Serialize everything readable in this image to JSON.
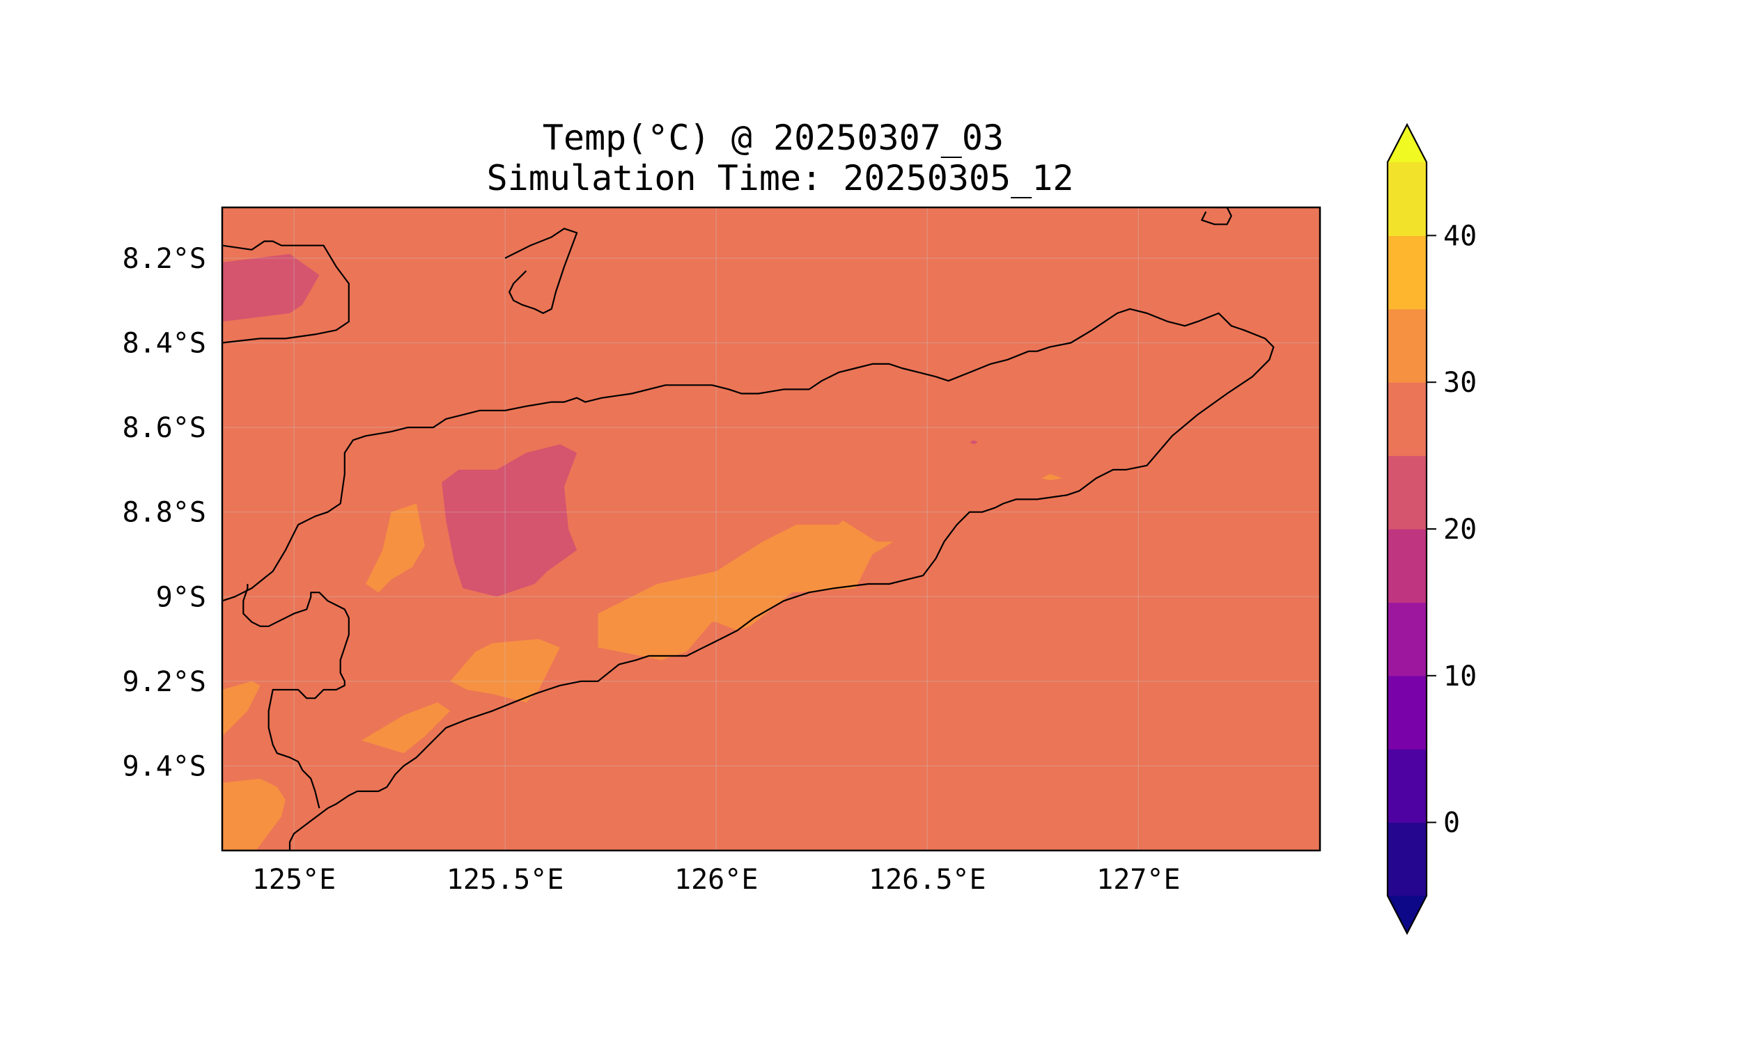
{
  "title": {
    "line1": "Temp(°C) @ 20250307_03",
    "line2": "Simulation Time: 20250305_12"
  },
  "map": {
    "lon_range": [
      124.83,
      127.43
    ],
    "lat_range": [
      -9.6,
      -8.08
    ],
    "lon_ticks": [
      {
        "value": 125.0,
        "label": "125°E"
      },
      {
        "value": 125.5,
        "label": "125.5°E"
      },
      {
        "value": 126.0,
        "label": "126°E"
      },
      {
        "value": 126.5,
        "label": "126.5°E"
      },
      {
        "value": 127.0,
        "label": "127°E"
      }
    ],
    "lat_ticks": [
      {
        "value": -8.2,
        "label": "8.2°S"
      },
      {
        "value": -8.4,
        "label": "8.4°S"
      },
      {
        "value": -8.6,
        "label": "8.6°S"
      },
      {
        "value": -8.8,
        "label": "8.8°S"
      },
      {
        "value": -9.0,
        "label": "9°S"
      },
      {
        "value": -9.2,
        "label": "9.2°S"
      },
      {
        "value": -9.4,
        "label": "9.4°S"
      }
    ],
    "background_level_color": "#eb7557",
    "fields": [
      {
        "level": "20-25",
        "color": "#d5546e",
        "points": [
          [
            124.83,
            -8.21
          ],
          [
            124.99,
            -8.19
          ],
          [
            125.06,
            -8.24
          ],
          [
            125.02,
            -8.31
          ],
          [
            124.99,
            -8.33
          ],
          [
            124.83,
            -8.35
          ]
        ]
      },
      {
        "level": "20-25",
        "color": "#d5546e",
        "points": [
          [
            125.35,
            -8.73
          ],
          [
            125.39,
            -8.7
          ],
          [
            125.48,
            -8.7
          ],
          [
            125.55,
            -8.66
          ],
          [
            125.63,
            -8.64
          ],
          [
            125.67,
            -8.66
          ],
          [
            125.64,
            -8.74
          ],
          [
            125.65,
            -8.84
          ],
          [
            125.67,
            -8.89
          ],
          [
            125.6,
            -8.94
          ],
          [
            125.57,
            -8.97
          ],
          [
            125.48,
            -9.0
          ],
          [
            125.4,
            -8.98
          ],
          [
            125.38,
            -8.92
          ],
          [
            125.36,
            -8.82
          ]
        ]
      },
      {
        "level": "20-25",
        "color": "#d5546e",
        "points": [
          [
            126.61,
            -8.64
          ],
          [
            126.62,
            -8.635
          ],
          [
            126.61,
            -8.63
          ],
          [
            126.6,
            -8.635
          ]
        ]
      },
      {
        "level": "30-35",
        "color": "#f69141",
        "points": [
          [
            125.23,
            -8.8
          ],
          [
            125.29,
            -8.78
          ],
          [
            125.31,
            -8.88
          ],
          [
            125.28,
            -8.93
          ],
          [
            125.23,
            -8.96
          ],
          [
            125.2,
            -8.99
          ],
          [
            125.17,
            -8.97
          ],
          [
            125.21,
            -8.89
          ]
        ]
      },
      {
        "level": "30-35",
        "color": "#f69141",
        "points": [
          [
            125.72,
            -9.04
          ],
          [
            125.86,
            -8.97
          ],
          [
            126.0,
            -8.94
          ],
          [
            126.11,
            -8.87
          ],
          [
            126.19,
            -8.83
          ],
          [
            126.29,
            -8.83
          ],
          [
            126.3,
            -8.82
          ],
          [
            126.38,
            -8.87
          ],
          [
            126.42,
            -8.87
          ],
          [
            126.37,
            -8.9
          ],
          [
            126.33,
            -8.98
          ],
          [
            126.18,
            -8.99
          ],
          [
            126.08,
            -9.07
          ],
          [
            126.05,
            -9.08
          ],
          [
            126.0,
            -9.06
          ],
          [
            125.99,
            -9.06
          ],
          [
            125.93,
            -9.13
          ],
          [
            125.87,
            -9.15
          ],
          [
            125.72,
            -9.12
          ]
        ]
      },
      {
        "level": "30-35",
        "color": "#f69141",
        "points": [
          [
            125.43,
            -9.13
          ],
          [
            125.47,
            -9.11
          ],
          [
            125.58,
            -9.1
          ],
          [
            125.63,
            -9.12
          ],
          [
            125.58,
            -9.22
          ],
          [
            125.55,
            -9.25
          ],
          [
            125.47,
            -9.23
          ],
          [
            125.41,
            -9.22
          ],
          [
            125.37,
            -9.2
          ]
        ]
      },
      {
        "level": "30-35",
        "color": "#f69141",
        "points": [
          [
            124.83,
            -9.22
          ],
          [
            124.9,
            -9.2
          ],
          [
            124.92,
            -9.21
          ],
          [
            124.89,
            -9.27
          ],
          [
            124.83,
            -9.33
          ]
        ]
      },
      {
        "level": "30-35",
        "color": "#f69141",
        "points": [
          [
            125.26,
            -9.28
          ],
          [
            125.34,
            -9.25
          ],
          [
            125.37,
            -9.27
          ],
          [
            125.31,
            -9.33
          ],
          [
            125.26,
            -9.37
          ],
          [
            125.16,
            -9.34
          ]
        ]
      },
      {
        "level": "30-35",
        "color": "#f69141",
        "points": [
          [
            124.83,
            -9.44
          ],
          [
            124.92,
            -9.43
          ],
          [
            124.96,
            -9.45
          ],
          [
            124.98,
            -9.48
          ],
          [
            124.97,
            -9.52
          ],
          [
            124.94,
            -9.56
          ],
          [
            124.91,
            -9.6
          ],
          [
            124.83,
            -9.6
          ]
        ]
      },
      {
        "level": "30-35",
        "color": "#f69141",
        "points": [
          [
            126.77,
            -8.72
          ],
          [
            126.79,
            -8.71
          ],
          [
            126.82,
            -8.72
          ],
          [
            126.79,
            -8.725
          ]
        ]
      }
    ],
    "coastlines": [
      [
        [
          124.83,
          -8.17
        ],
        [
          124.9,
          -8.18
        ],
        [
          124.93,
          -8.16
        ],
        [
          124.95,
          -8.16
        ],
        [
          124.97,
          -8.17
        ],
        [
          125.02,
          -8.17
        ],
        [
          125.07,
          -8.17
        ],
        [
          125.1,
          -8.22
        ],
        [
          125.13,
          -8.26
        ],
        [
          125.13,
          -8.29
        ],
        [
          125.13,
          -8.35
        ],
        [
          125.1,
          -8.37
        ],
        [
          125.05,
          -8.38
        ],
        [
          124.98,
          -8.39
        ],
        [
          124.92,
          -8.39
        ],
        [
          124.83,
          -8.4
        ]
      ],
      [
        [
          125.5,
          -8.2
        ],
        [
          125.56,
          -8.17
        ],
        [
          125.61,
          -8.15
        ],
        [
          125.64,
          -8.13
        ],
        [
          125.67,
          -8.14
        ],
        [
          125.64,
          -8.22
        ],
        [
          125.62,
          -8.28
        ],
        [
          125.61,
          -8.32
        ],
        [
          125.59,
          -8.33
        ],
        [
          125.57,
          -8.32
        ],
        [
          125.54,
          -8.31
        ],
        [
          125.52,
          -8.3
        ],
        [
          125.51,
          -8.28
        ],
        [
          125.52,
          -8.26
        ],
        [
          125.55,
          -8.23
        ]
      ],
      [
        [
          127.18,
          -8.08
        ],
        [
          127.21,
          -8.08
        ],
        [
          127.22,
          -8.1
        ],
        [
          127.21,
          -8.12
        ],
        [
          127.18,
          -8.12
        ],
        [
          127.15,
          -8.11
        ],
        [
          127.16,
          -8.09
        ]
      ],
      [
        [
          124.83,
          -9.01
        ],
        [
          124.86,
          -9.0
        ],
        [
          124.9,
          -8.98
        ],
        [
          124.95,
          -8.94
        ],
        [
          124.98,
          -8.89
        ],
        [
          125.01,
          -8.83
        ],
        [
          125.05,
          -8.81
        ],
        [
          125.08,
          -8.8
        ],
        [
          125.11,
          -8.78
        ],
        [
          125.12,
          -8.71
        ],
        [
          125.12,
          -8.66
        ],
        [
          125.14,
          -8.63
        ],
        [
          125.17,
          -8.62
        ],
        [
          125.23,
          -8.61
        ],
        [
          125.27,
          -8.6
        ],
        [
          125.3,
          -8.6
        ],
        [
          125.33,
          -8.6
        ],
        [
          125.36,
          -8.58
        ],
        [
          125.4,
          -8.57
        ],
        [
          125.44,
          -8.56
        ],
        [
          125.5,
          -8.56
        ],
        [
          125.55,
          -8.55
        ],
        [
          125.61,
          -8.54
        ],
        [
          125.64,
          -8.54
        ],
        [
          125.67,
          -8.53
        ],
        [
          125.69,
          -8.54
        ],
        [
          125.73,
          -8.53
        ],
        [
          125.8,
          -8.52
        ],
        [
          125.88,
          -8.5
        ],
        [
          125.92,
          -8.5
        ],
        [
          125.99,
          -8.5
        ],
        [
          126.03,
          -8.51
        ],
        [
          126.06,
          -8.52
        ],
        [
          126.1,
          -8.52
        ],
        [
          126.16,
          -8.51
        ],
        [
          126.22,
          -8.51
        ],
        [
          126.25,
          -8.49
        ],
        [
          126.29,
          -8.47
        ],
        [
          126.33,
          -8.46
        ],
        [
          126.37,
          -8.45
        ],
        [
          126.41,
          -8.45
        ],
        [
          126.44,
          -8.46
        ],
        [
          126.48,
          -8.47
        ],
        [
          126.52,
          -8.48
        ],
        [
          126.55,
          -8.49
        ],
        [
          126.6,
          -8.47
        ],
        [
          126.65,
          -8.45
        ],
        [
          126.69,
          -8.44
        ],
        [
          126.74,
          -8.42
        ],
        [
          126.76,
          -8.42
        ],
        [
          126.79,
          -8.41
        ],
        [
          126.84,
          -8.4
        ],
        [
          126.89,
          -8.37
        ],
        [
          126.95,
          -8.33
        ],
        [
          126.98,
          -8.32
        ],
        [
          127.02,
          -8.33
        ],
        [
          127.07,
          -8.35
        ],
        [
          127.11,
          -8.36
        ],
        [
          127.14,
          -8.35
        ],
        [
          127.19,
          -8.33
        ],
        [
          127.22,
          -8.36
        ],
        [
          127.25,
          -8.37
        ],
        [
          127.3,
          -8.39
        ],
        [
          127.32,
          -8.41
        ],
        [
          127.31,
          -8.44
        ],
        [
          127.27,
          -8.48
        ],
        [
          127.21,
          -8.52
        ],
        [
          127.14,
          -8.57
        ],
        [
          127.08,
          -8.62
        ],
        [
          127.02,
          -8.69
        ],
        [
          126.97,
          -8.7
        ],
        [
          126.94,
          -8.7
        ],
        [
          126.9,
          -8.72
        ],
        [
          126.86,
          -8.75
        ],
        [
          126.83,
          -8.76
        ],
        [
          126.76,
          -8.77
        ],
        [
          126.71,
          -8.77
        ],
        [
          126.68,
          -8.78
        ],
        [
          126.66,
          -8.79
        ],
        [
          126.63,
          -8.8
        ],
        [
          126.6,
          -8.8
        ],
        [
          126.57,
          -8.83
        ],
        [
          126.54,
          -8.87
        ],
        [
          126.52,
          -8.91
        ],
        [
          126.49,
          -8.95
        ],
        [
          126.45,
          -8.96
        ],
        [
          126.41,
          -8.97
        ],
        [
          126.36,
          -8.97
        ],
        [
          126.28,
          -8.98
        ],
        [
          126.22,
          -8.99
        ],
        [
          126.16,
          -9.01
        ],
        [
          126.09,
          -9.05
        ],
        [
          126.05,
          -9.08
        ],
        [
          126.01,
          -9.1
        ],
        [
          125.97,
          -9.12
        ],
        [
          125.93,
          -9.14
        ],
        [
          125.88,
          -9.14
        ],
        [
          125.84,
          -9.14
        ],
        [
          125.81,
          -9.15
        ],
        [
          125.77,
          -9.16
        ],
        [
          125.72,
          -9.2
        ],
        [
          125.68,
          -9.2
        ],
        [
          125.63,
          -9.21
        ],
        [
          125.6,
          -9.22
        ],
        [
          125.57,
          -9.23
        ],
        [
          125.52,
          -9.25
        ],
        [
          125.47,
          -9.27
        ],
        [
          125.41,
          -9.29
        ],
        [
          125.36,
          -9.31
        ],
        [
          125.32,
          -9.35
        ],
        [
          125.29,
          -9.38
        ],
        [
          125.26,
          -9.4
        ],
        [
          125.24,
          -9.42
        ],
        [
          125.22,
          -9.45
        ],
        [
          125.2,
          -9.46
        ],
        [
          125.15,
          -9.46
        ],
        [
          125.13,
          -9.47
        ],
        [
          125.1,
          -9.49
        ],
        [
          125.08,
          -9.5
        ],
        [
          125.04,
          -9.53
        ],
        [
          125.0,
          -9.56
        ],
        [
          124.99,
          -9.58
        ],
        [
          124.99,
          -9.6
        ]
      ],
      [
        [
          125.06,
          -9.5
        ],
        [
          125.05,
          -9.46
        ],
        [
          125.04,
          -9.43
        ],
        [
          125.02,
          -9.41
        ],
        [
          125.01,
          -9.39
        ],
        [
          124.99,
          -9.38
        ],
        [
          124.96,
          -9.37
        ],
        [
          124.95,
          -9.35
        ],
        [
          124.94,
          -9.31
        ],
        [
          124.94,
          -9.27
        ],
        [
          124.95,
          -9.22
        ],
        [
          124.98,
          -9.22
        ],
        [
          125.01,
          -9.22
        ],
        [
          125.03,
          -9.24
        ],
        [
          125.05,
          -9.24
        ],
        [
          125.07,
          -9.22
        ],
        [
          125.1,
          -9.22
        ],
        [
          125.12,
          -9.21
        ],
        [
          125.12,
          -9.2
        ],
        [
          125.11,
          -9.18
        ],
        [
          125.11,
          -9.15
        ],
        [
          125.12,
          -9.12
        ],
        [
          125.13,
          -9.09
        ],
        [
          125.13,
          -9.05
        ],
        [
          125.12,
          -9.03
        ],
        [
          125.1,
          -9.02
        ],
        [
          125.08,
          -9.01
        ],
        [
          125.06,
          -8.99
        ],
        [
          125.04,
          -8.99
        ],
        [
          125.04,
          -9.0
        ],
        [
          125.03,
          -9.03
        ],
        [
          125.0,
          -9.04
        ],
        [
          124.98,
          -9.05
        ],
        [
          124.96,
          -9.06
        ],
        [
          124.94,
          -9.07
        ],
        [
          124.92,
          -9.07
        ],
        [
          124.9,
          -9.06
        ],
        [
          124.88,
          -9.04
        ],
        [
          124.88,
          -9.01
        ],
        [
          124.89,
          -8.98
        ],
        [
          124.89,
          -8.97
        ]
      ]
    ],
    "colorbar": {
      "levels": [
        -5,
        0,
        5,
        10,
        15,
        20,
        25,
        30,
        35,
        40,
        45
      ],
      "colors": [
        "#24068f",
        "#4e02a2",
        "#7902a8",
        "#9d179e",
        "#c0357f",
        "#d5546e",
        "#eb7557",
        "#f69141",
        "#fdb62e",
        "#f3e22a"
      ],
      "under_color": "#0d0887",
      "over_color": "#f0f921",
      "ticks": [
        {
          "value": 0,
          "label": "0"
        },
        {
          "value": 10,
          "label": "10"
        },
        {
          "value": 20,
          "label": "20"
        },
        {
          "value": 30,
          "label": "30"
        },
        {
          "value": 40,
          "label": "40"
        }
      ]
    }
  }
}
